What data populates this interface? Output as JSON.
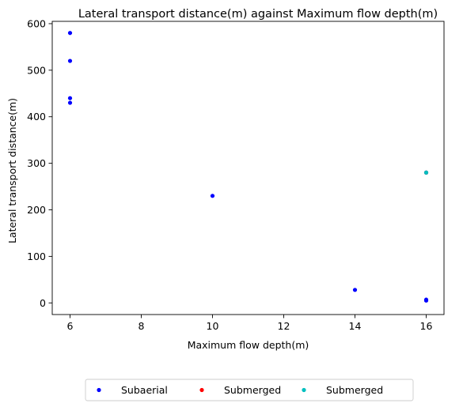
{
  "chart_data": {
    "type": "scatter",
    "title": "Lateral transport distance(m) against Maximum flow depth(m)",
    "xlabel": "Maximum flow depth(m)",
    "ylabel": "Lateral transport distance(m)",
    "xlim": [
      5.5,
      16.5
    ],
    "ylim": [
      -25,
      605
    ],
    "xticks": [
      6,
      8,
      10,
      12,
      14,
      16
    ],
    "yticks": [
      0,
      100,
      200,
      300,
      400,
      500,
      600
    ],
    "grid": false,
    "legend_position": "bottom-center, below chart",
    "series": [
      {
        "name": "Subaerial",
        "color": "#0000ff",
        "points": [
          {
            "x": 6,
            "y": 580
          },
          {
            "x": 6,
            "y": 520
          },
          {
            "x": 6,
            "y": 440
          },
          {
            "x": 6,
            "y": 430
          },
          {
            "x": 10,
            "y": 230
          },
          {
            "x": 14,
            "y": 28
          },
          {
            "x": 16,
            "y": 5
          },
          {
            "x": 16,
            "y": 7
          },
          {
            "x": 16,
            "y": 280
          }
        ]
      },
      {
        "name": "Submerged",
        "color": "#ff0000",
        "points": [
          {
            "x": 16,
            "y": 280
          }
        ]
      },
      {
        "name": "Submerged",
        "color": "#00bfbf",
        "points": [
          {
            "x": 16,
            "y": 280
          }
        ]
      }
    ]
  }
}
